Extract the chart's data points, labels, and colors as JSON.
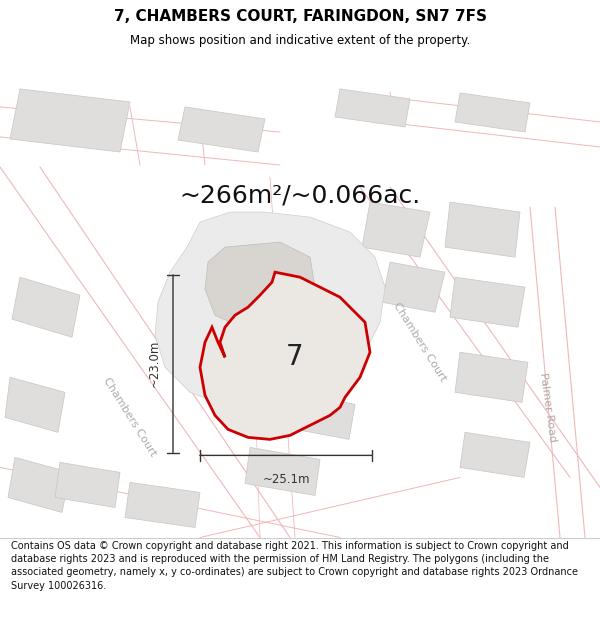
{
  "title": "7, CHAMBERS COURT, FARINGDON, SN7 7FS",
  "subtitle": "Map shows position and indicative extent of the property.",
  "area_text": "~266m²/~0.066ac.",
  "label_number": "7",
  "dim_horizontal": "~25.1m",
  "dim_vertical": "~23.0m",
  "footer": "Contains OS data © Crown copyright and database right 2021. This information is subject to Crown copyright and database rights 2023 and is reproduced with the permission of HM Land Registry. The polygons (including the associated geometry, namely x, y co-ordinates) are subject to Crown copyright and database rights 2023 Ordnance Survey 100026316.",
  "bg_color": "#ffffff",
  "map_bg": "#ffffff",
  "road_line_color": "#f0b8b8",
  "building_fill": "#e0dedd",
  "building_edge": "#c8c4c0",
  "plot_fill": "#ebe8e4",
  "plot_outline": "#cc0000",
  "street_color": "#b0aaaa",
  "dim_color": "#333333",
  "title_fontsize": 11,
  "subtitle_fontsize": 8.5,
  "area_fontsize": 18,
  "number_fontsize": 20,
  "dim_fontsize": 8.5,
  "street_fontsize": 8,
  "footer_fontsize": 7
}
